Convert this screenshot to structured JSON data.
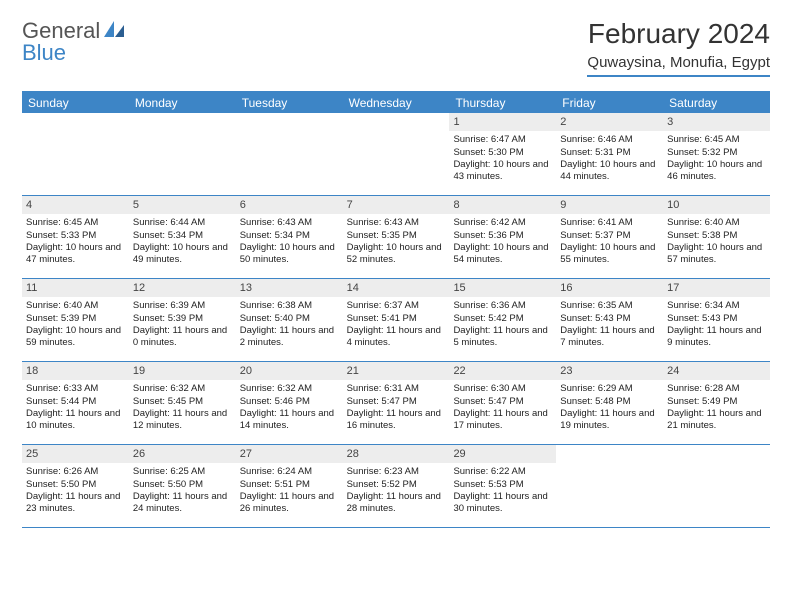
{
  "logo": {
    "text1": "General",
    "text2": "Blue"
  },
  "title": "February 2024",
  "location": "Quwaysina, Monufia, Egypt",
  "dayNames": [
    "Sunday",
    "Monday",
    "Tuesday",
    "Wednesday",
    "Thursday",
    "Friday",
    "Saturday"
  ],
  "colors": {
    "accent": "#3d85c6",
    "headerText": "#ffffff",
    "dayNumBg": "#ededed",
    "bodyText": "#222222",
    "titleText": "#333333"
  },
  "typography": {
    "titleFontSize": 28,
    "locationFontSize": 15,
    "dayHeaderFontSize": 12,
    "cellFontSize": 9.5
  },
  "weeks": [
    [
      {
        "n": "",
        "sr": "",
        "ss": "",
        "dl": ""
      },
      {
        "n": "",
        "sr": "",
        "ss": "",
        "dl": ""
      },
      {
        "n": "",
        "sr": "",
        "ss": "",
        "dl": ""
      },
      {
        "n": "",
        "sr": "",
        "ss": "",
        "dl": ""
      },
      {
        "n": "1",
        "sr": "6:47 AM",
        "ss": "5:30 PM",
        "dl": "10 hours and 43 minutes."
      },
      {
        "n": "2",
        "sr": "6:46 AM",
        "ss": "5:31 PM",
        "dl": "10 hours and 44 minutes."
      },
      {
        "n": "3",
        "sr": "6:45 AM",
        "ss": "5:32 PM",
        "dl": "10 hours and 46 minutes."
      }
    ],
    [
      {
        "n": "4",
        "sr": "6:45 AM",
        "ss": "5:33 PM",
        "dl": "10 hours and 47 minutes."
      },
      {
        "n": "5",
        "sr": "6:44 AM",
        "ss": "5:34 PM",
        "dl": "10 hours and 49 minutes."
      },
      {
        "n": "6",
        "sr": "6:43 AM",
        "ss": "5:34 PM",
        "dl": "10 hours and 50 minutes."
      },
      {
        "n": "7",
        "sr": "6:43 AM",
        "ss": "5:35 PM",
        "dl": "10 hours and 52 minutes."
      },
      {
        "n": "8",
        "sr": "6:42 AM",
        "ss": "5:36 PM",
        "dl": "10 hours and 54 minutes."
      },
      {
        "n": "9",
        "sr": "6:41 AM",
        "ss": "5:37 PM",
        "dl": "10 hours and 55 minutes."
      },
      {
        "n": "10",
        "sr": "6:40 AM",
        "ss": "5:38 PM",
        "dl": "10 hours and 57 minutes."
      }
    ],
    [
      {
        "n": "11",
        "sr": "6:40 AM",
        "ss": "5:39 PM",
        "dl": "10 hours and 59 minutes."
      },
      {
        "n": "12",
        "sr": "6:39 AM",
        "ss": "5:39 PM",
        "dl": "11 hours and 0 minutes."
      },
      {
        "n": "13",
        "sr": "6:38 AM",
        "ss": "5:40 PM",
        "dl": "11 hours and 2 minutes."
      },
      {
        "n": "14",
        "sr": "6:37 AM",
        "ss": "5:41 PM",
        "dl": "11 hours and 4 minutes."
      },
      {
        "n": "15",
        "sr": "6:36 AM",
        "ss": "5:42 PM",
        "dl": "11 hours and 5 minutes."
      },
      {
        "n": "16",
        "sr": "6:35 AM",
        "ss": "5:43 PM",
        "dl": "11 hours and 7 minutes."
      },
      {
        "n": "17",
        "sr": "6:34 AM",
        "ss": "5:43 PM",
        "dl": "11 hours and 9 minutes."
      }
    ],
    [
      {
        "n": "18",
        "sr": "6:33 AM",
        "ss": "5:44 PM",
        "dl": "11 hours and 10 minutes."
      },
      {
        "n": "19",
        "sr": "6:32 AM",
        "ss": "5:45 PM",
        "dl": "11 hours and 12 minutes."
      },
      {
        "n": "20",
        "sr": "6:32 AM",
        "ss": "5:46 PM",
        "dl": "11 hours and 14 minutes."
      },
      {
        "n": "21",
        "sr": "6:31 AM",
        "ss": "5:47 PM",
        "dl": "11 hours and 16 minutes."
      },
      {
        "n": "22",
        "sr": "6:30 AM",
        "ss": "5:47 PM",
        "dl": "11 hours and 17 minutes."
      },
      {
        "n": "23",
        "sr": "6:29 AM",
        "ss": "5:48 PM",
        "dl": "11 hours and 19 minutes."
      },
      {
        "n": "24",
        "sr": "6:28 AM",
        "ss": "5:49 PM",
        "dl": "11 hours and 21 minutes."
      }
    ],
    [
      {
        "n": "25",
        "sr": "6:26 AM",
        "ss": "5:50 PM",
        "dl": "11 hours and 23 minutes."
      },
      {
        "n": "26",
        "sr": "6:25 AM",
        "ss": "5:50 PM",
        "dl": "11 hours and 24 minutes."
      },
      {
        "n": "27",
        "sr": "6:24 AM",
        "ss": "5:51 PM",
        "dl": "11 hours and 26 minutes."
      },
      {
        "n": "28",
        "sr": "6:23 AM",
        "ss": "5:52 PM",
        "dl": "11 hours and 28 minutes."
      },
      {
        "n": "29",
        "sr": "6:22 AM",
        "ss": "5:53 PM",
        "dl": "11 hours and 30 minutes."
      },
      {
        "n": "",
        "sr": "",
        "ss": "",
        "dl": ""
      },
      {
        "n": "",
        "sr": "",
        "ss": "",
        "dl": ""
      }
    ]
  ],
  "labels": {
    "sunrise": "Sunrise:",
    "sunset": "Sunset:",
    "daylight": "Daylight:"
  }
}
